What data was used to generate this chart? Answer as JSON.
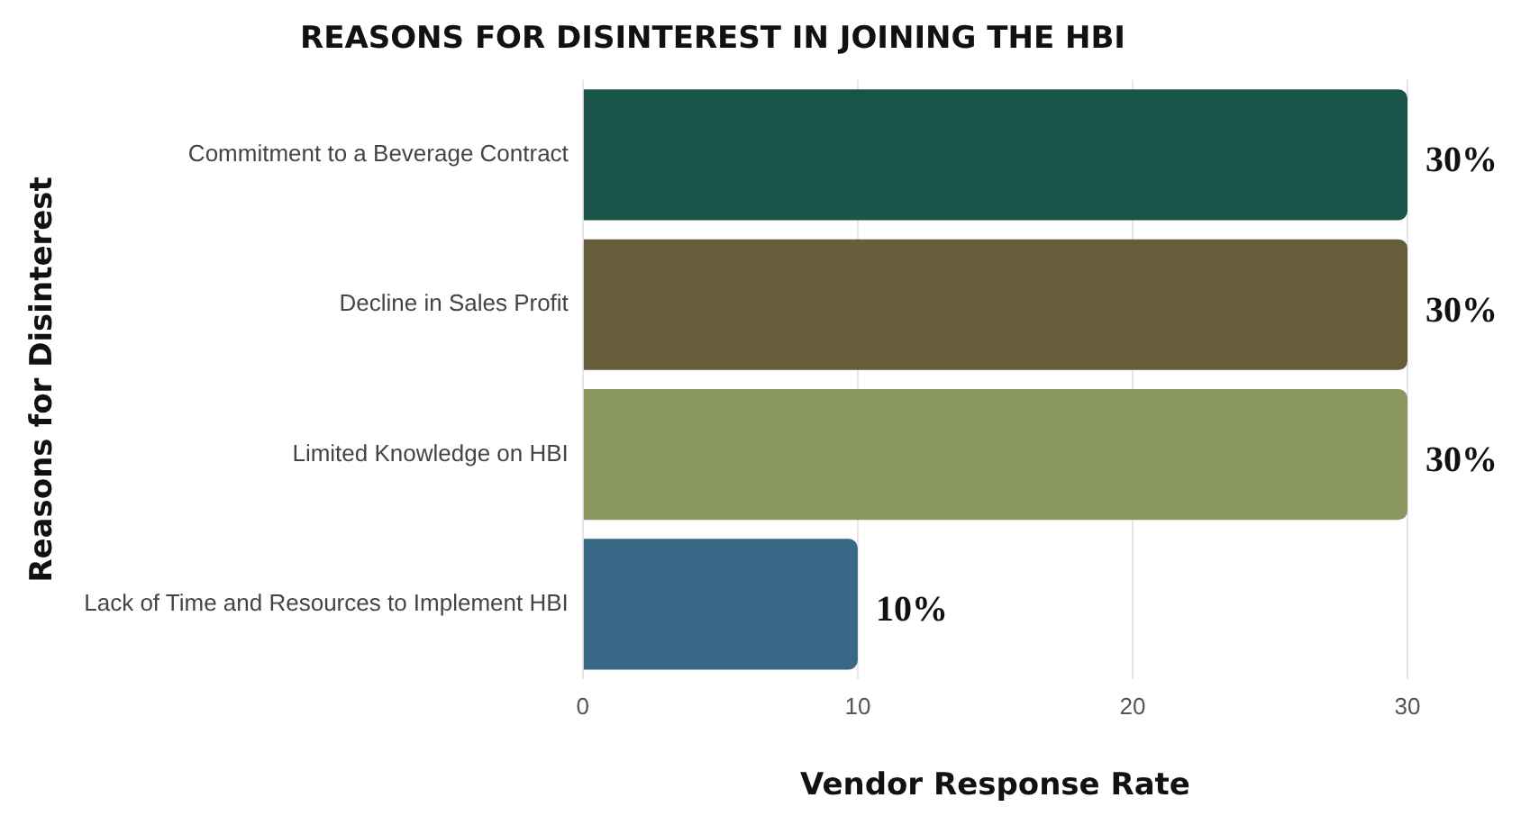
{
  "chart_data": {
    "type": "bar",
    "orientation": "horizontal",
    "title": "REASONS FOR DISINTEREST IN JOINING THE HBI",
    "xlabel": "Vendor Response Rate",
    "ylabel": "Reasons for Disinterest",
    "categories": [
      "Commitment to a Beverage Contract",
      "Decline in Sales Profit",
      "Limited Knowledge on HBI",
      "Lack of Time and Resources to Implement HBI"
    ],
    "values": [
      30,
      30,
      30,
      10
    ],
    "colors": [
      "#1a5449",
      "#665e3b",
      "#8a965f",
      "#376885"
    ],
    "value_labels": [
      "30%",
      "30%",
      "30%",
      "10%"
    ],
    "xlim": [
      0,
      30
    ],
    "xticks": [
      0,
      10,
      20,
      30
    ],
    "grid": "x",
    "legend": false
  }
}
